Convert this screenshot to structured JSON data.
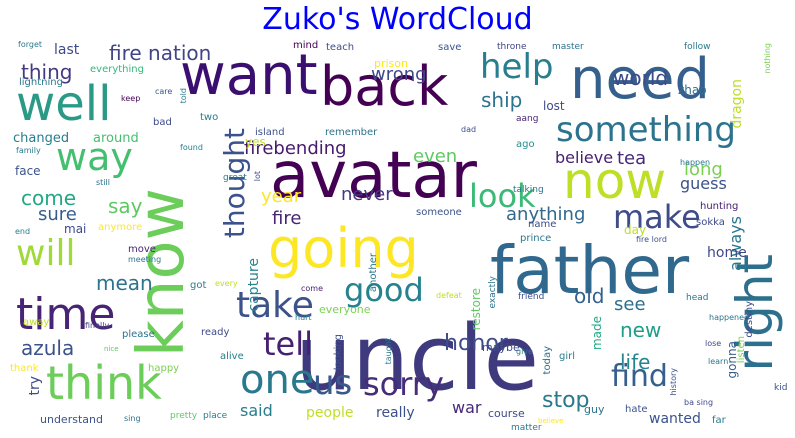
{
  "title": "Zuko's WordCloud",
  "colors": {
    "title": "#0000ff",
    "background": "#ffffff",
    "palette": [
      "#440154",
      "#482475",
      "#414487",
      "#355f8d",
      "#2a788e",
      "#21918c",
      "#22a884",
      "#44bf70",
      "#7ad151",
      "#bddf26",
      "#fde725"
    ]
  },
  "words": [
    {
      "text": "uncle",
      "color": "#3e3a7d"
    },
    {
      "text": "know",
      "color": "#6ccd5a"
    },
    {
      "text": "avatar",
      "color": "#440154"
    },
    {
      "text": "going",
      "color": "#fde725"
    },
    {
      "text": "father",
      "color": "#31688e"
    },
    {
      "text": "want",
      "color": "#3b0f70"
    },
    {
      "text": "back",
      "color": "#440154"
    },
    {
      "text": "need",
      "color": "#355f8d"
    },
    {
      "text": "well",
      "color": "#2a9a86"
    },
    {
      "text": "now",
      "color": "#bddf26"
    },
    {
      "text": "think",
      "color": "#6ccd5a"
    },
    {
      "text": "time",
      "color": "#482475"
    },
    {
      "text": "right",
      "color": "#2d708e"
    },
    {
      "text": "will",
      "color": "#a0da39"
    },
    {
      "text": "way",
      "color": "#44bf70"
    },
    {
      "text": "one",
      "color": "#2a788e"
    },
    {
      "text": "help",
      "color": "#287d8e"
    },
    {
      "text": "something",
      "color": "#2c738e"
    },
    {
      "text": "take",
      "color": "#3b528b"
    },
    {
      "text": "us",
      "color": "#38598c"
    },
    {
      "text": "sorry",
      "color": "#472c7a"
    },
    {
      "text": "make",
      "color": "#3e4c8a"
    },
    {
      "text": "look",
      "color": "#3aba76"
    },
    {
      "text": "tell",
      "color": "#482071"
    },
    {
      "text": "good",
      "color": "#26828e"
    },
    {
      "text": "find",
      "color": "#355f8d"
    },
    {
      "text": "thought",
      "color": "#3b528b"
    },
    {
      "text": "firebending",
      "color": "#481a6c"
    },
    {
      "text": "fire nation",
      "color": "#414487"
    },
    {
      "text": "world",
      "color": "#3e4a89"
    },
    {
      "text": "thing",
      "color": "#443a83"
    },
    {
      "text": "azula",
      "color": "#3b528b"
    },
    {
      "text": "mean",
      "color": "#2c738e"
    },
    {
      "text": "come",
      "color": "#22a884"
    },
    {
      "text": "say",
      "color": "#5ec962"
    },
    {
      "text": "sure",
      "color": "#365c8d"
    },
    {
      "text": "try",
      "color": "#3e4a89"
    },
    {
      "text": "said",
      "color": "#287d8e"
    },
    {
      "text": "people",
      "color": "#bddf26"
    },
    {
      "text": "really",
      "color": "#3b528b"
    },
    {
      "text": "war",
      "color": "#482878"
    },
    {
      "text": "stop",
      "color": "#2a788e"
    },
    {
      "text": "life",
      "color": "#25848e"
    },
    {
      "text": "new",
      "color": "#1f9e89"
    },
    {
      "text": "see",
      "color": "#2e6f8e"
    },
    {
      "text": "old",
      "color": "#34608d"
    },
    {
      "text": "honor",
      "color": "#3e4c8a"
    },
    {
      "text": "even",
      "color": "#5ec962"
    },
    {
      "text": "ship",
      "color": "#2c738e"
    },
    {
      "text": "wrong",
      "color": "#3f4889"
    },
    {
      "text": "believe",
      "color": "#482071"
    },
    {
      "text": "tea",
      "color": "#482878"
    },
    {
      "text": "long",
      "color": "#7ad151"
    },
    {
      "text": "year",
      "color": "#fde725"
    },
    {
      "text": "never",
      "color": "#443983"
    },
    {
      "text": "anything",
      "color": "#31688e"
    },
    {
      "text": "always",
      "color": "#2a788e"
    },
    {
      "text": "guess",
      "color": "#3b528b"
    },
    {
      "text": "home",
      "color": "#3f4889"
    },
    {
      "text": "capture",
      "color": "#25848e"
    },
    {
      "text": "fire",
      "color": "#482475"
    },
    {
      "text": "last",
      "color": "#3e4a89"
    },
    {
      "text": "everything",
      "color": "#35b779"
    },
    {
      "text": "around",
      "color": "#44bf70"
    },
    {
      "text": "changed",
      "color": "#287d8e"
    },
    {
      "text": "face",
      "color": "#3b528b"
    },
    {
      "text": "lost",
      "color": "#3e4a89"
    },
    {
      "text": "dragon",
      "color": "#bddf26"
    },
    {
      "text": "zhao",
      "color": "#2c738e"
    },
    {
      "text": "gonna",
      "color": "#355f8d"
    },
    {
      "text": "wanted",
      "color": "#3b528b"
    },
    {
      "text": "made",
      "color": "#22a884"
    },
    {
      "text": "yes",
      "color": "#bddf26"
    },
    {
      "text": "two",
      "color": "#287d8e"
    },
    {
      "text": "forget",
      "color": "#2a788e"
    },
    {
      "text": "mind",
      "color": "#440154"
    },
    {
      "text": "teach",
      "color": "#3e4a89"
    },
    {
      "text": "save",
      "color": "#3b528b"
    },
    {
      "text": "throne",
      "color": "#414487"
    },
    {
      "text": "master",
      "color": "#2c738e"
    },
    {
      "text": "follow",
      "color": "#2a788e"
    },
    {
      "text": "nothing",
      "color": "#7ad151"
    },
    {
      "text": "prison",
      "color": "#fde725"
    },
    {
      "text": "lightning",
      "color": "#2a788e"
    },
    {
      "text": "keep",
      "color": "#440154"
    },
    {
      "text": "care",
      "color": "#3b528b"
    },
    {
      "text": "told",
      "color": "#287d8e"
    },
    {
      "text": "bad",
      "color": "#3e4a89"
    },
    {
      "text": "found",
      "color": "#287d8e"
    },
    {
      "text": "island",
      "color": "#3b528b"
    },
    {
      "text": "remember",
      "color": "#2c738e"
    },
    {
      "text": "aang",
      "color": "#482475"
    },
    {
      "text": "dad",
      "color": "#3b528b"
    },
    {
      "text": "ago",
      "color": "#21918c"
    },
    {
      "text": "happen",
      "color": "#2a788e"
    },
    {
      "text": "hunting",
      "color": "#482071"
    },
    {
      "text": "sokka",
      "color": "#3e4a89"
    },
    {
      "text": "family",
      "color": "#287d8e"
    },
    {
      "text": "still",
      "color": "#2c738e"
    },
    {
      "text": "great",
      "color": "#2a788e"
    },
    {
      "text": "lot",
      "color": "#3e4a89"
    },
    {
      "text": "someone",
      "color": "#3b528b"
    },
    {
      "text": "talking",
      "color": "#2c738e"
    },
    {
      "text": "name",
      "color": "#3e4a89"
    },
    {
      "text": "day",
      "color": "#bddf26"
    },
    {
      "text": "another",
      "color": "#2a788e"
    },
    {
      "text": "prince",
      "color": "#2a788e"
    },
    {
      "text": "fire lord",
      "color": "#3b528b"
    },
    {
      "text": "end",
      "color": "#287d8e"
    },
    {
      "text": "mai",
      "color": "#3e4a89"
    },
    {
      "text": "anymore",
      "color": "#fde725"
    },
    {
      "text": "move",
      "color": "#482475"
    },
    {
      "text": "meeting",
      "color": "#2c738e"
    },
    {
      "text": "restore",
      "color": "#5ec962"
    },
    {
      "text": "finally",
      "color": "#3e4a89"
    },
    {
      "text": "got",
      "color": "#287d8e"
    },
    {
      "text": "every",
      "color": "#bddf26"
    },
    {
      "text": "hurt",
      "color": "#287d8e"
    },
    {
      "text": "come",
      "color": "#482071"
    },
    {
      "text": "everyone",
      "color": "#7ad151"
    },
    {
      "text": "exactly",
      "color": "#2c738e"
    },
    {
      "text": "defeat",
      "color": "#bddf26"
    },
    {
      "text": "friend",
      "color": "#3b528b"
    },
    {
      "text": "destiny",
      "color": "#3e4a89"
    },
    {
      "text": "head",
      "color": "#2a788e"
    },
    {
      "text": "happened",
      "color": "#2c738e"
    },
    {
      "text": "kid",
      "color": "#3b528b"
    },
    {
      "text": "away",
      "color": "#bddf26"
    },
    {
      "text": "please",
      "color": "#2c738e"
    },
    {
      "text": "ready",
      "color": "#3e4a89"
    },
    {
      "text": "alive",
      "color": "#287d8e"
    },
    {
      "text": "looking",
      "color": "#3b528b"
    },
    {
      "text": "taught",
      "color": "#2a788e"
    },
    {
      "text": "maybe",
      "color": "#3e4a89"
    },
    {
      "text": "give",
      "color": "#287d8e"
    },
    {
      "text": "today",
      "color": "#2c738e"
    },
    {
      "text": "history",
      "color": "#3b528b"
    },
    {
      "text": "listen",
      "color": "#7ad151"
    },
    {
      "text": "learn",
      "color": "#2a788e"
    },
    {
      "text": "lose",
      "color": "#3e4a89"
    },
    {
      "text": "girl",
      "color": "#287d8e"
    },
    {
      "text": "thank",
      "color": "#fde725"
    },
    {
      "text": "happy",
      "color": "#7ad151"
    },
    {
      "text": "understand",
      "color": "#3b528b"
    },
    {
      "text": "sing",
      "color": "#2c738e"
    },
    {
      "text": "pretty",
      "color": "#5ec962"
    },
    {
      "text": "place",
      "color": "#287d8e"
    },
    {
      "text": "course",
      "color": "#3e4a89"
    },
    {
      "text": "matter",
      "color": "#2a788e"
    },
    {
      "text": "hate",
      "color": "#3b528b"
    },
    {
      "text": "guy",
      "color": "#2c738e"
    },
    {
      "text": "far",
      "color": "#287d8e"
    },
    {
      "text": "ba sing",
      "color": "#3e4a89"
    },
    {
      "text": "nice",
      "color": "#5ec962"
    },
    {
      "text": "believe",
      "color": "#fde725"
    }
  ]
}
